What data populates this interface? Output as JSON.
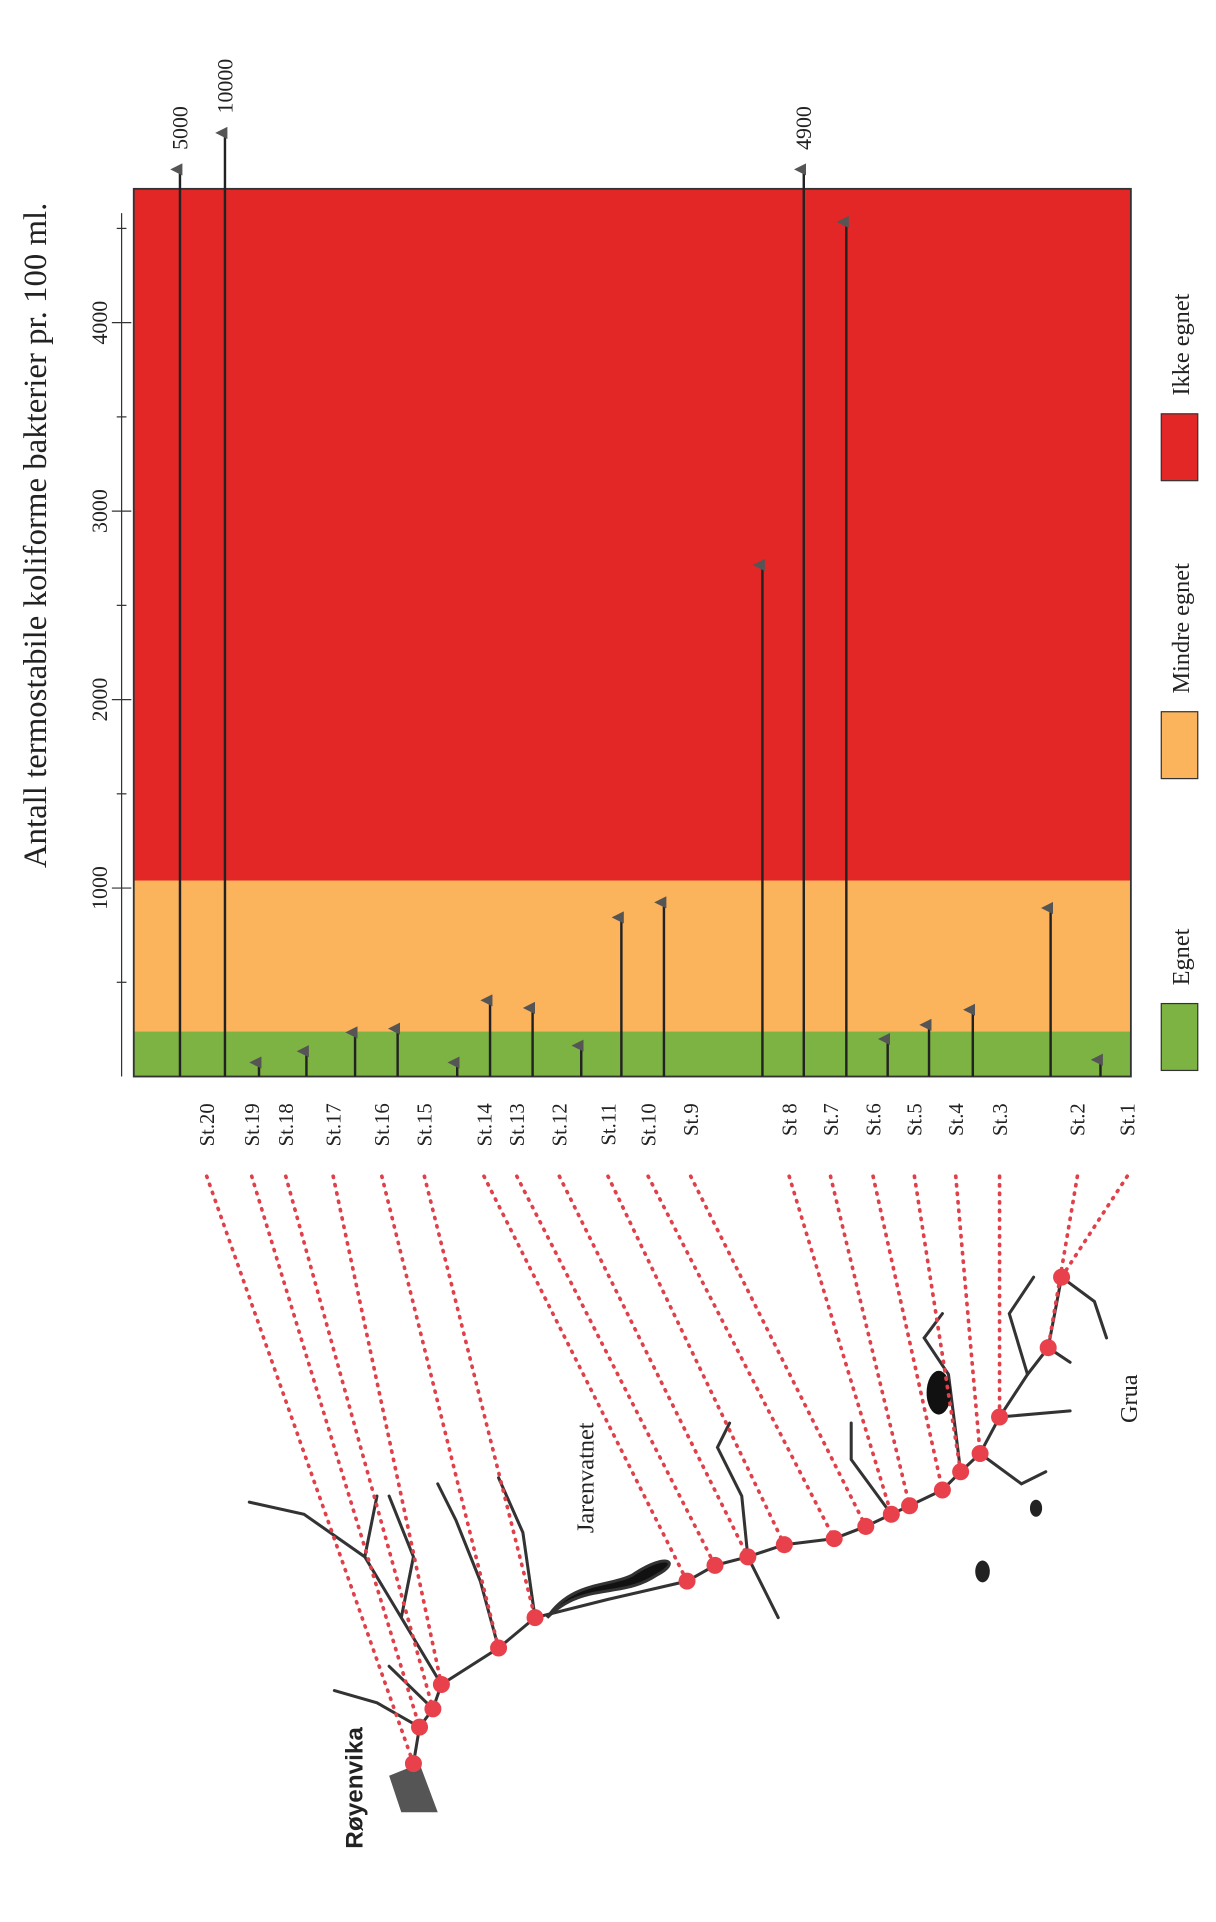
{
  "chart_data": {
    "type": "arrow-bar",
    "title": "Antall termostabile koliforme bakterier pr. 100 ml.",
    "categories": [
      "St.20",
      "St.19",
      "St.18",
      "St.17",
      "St.16",
      "St.15",
      "St.14",
      "St.13",
      "St.12",
      "St.11",
      "St.10",
      "St.9",
      "St 8",
      "St.7",
      "St.6",
      "St.5",
      "St.4",
      "St.3",
      "St.2",
      "St.1"
    ],
    "values": [
      5000,
      10000,
      100,
      160,
      260,
      280,
      100,
      430,
      390,
      190,
      870,
      950,
      2740,
      4900,
      4560,
      225,
      300,
      380,
      920,
      115
    ],
    "value_labels": [
      "5000",
      "10000",
      null,
      null,
      null,
      null,
      null,
      null,
      null,
      null,
      null,
      null,
      null,
      "4900",
      null,
      null,
      null,
      null,
      null,
      null
    ],
    "ylim": [
      0,
      4710
    ],
    "yticks": [
      1000,
      2000,
      3000,
      4000
    ],
    "minor_yticks": [
      500,
      1500,
      2500,
      3500,
      4500
    ],
    "zones": [
      {
        "name": "Egnet",
        "color": "#7cb342",
        "from": 0,
        "to": 240
      },
      {
        "name": "Mindre egnet",
        "color": "#fbb45c",
        "from": 240,
        "to": 1040
      },
      {
        "name": "Ikke egnet",
        "color": "#e32626",
        "from": 1040
      }
    ],
    "map_labels": [
      "Røyenvika",
      "Jarenvatnet",
      "Grua"
    ]
  }
}
